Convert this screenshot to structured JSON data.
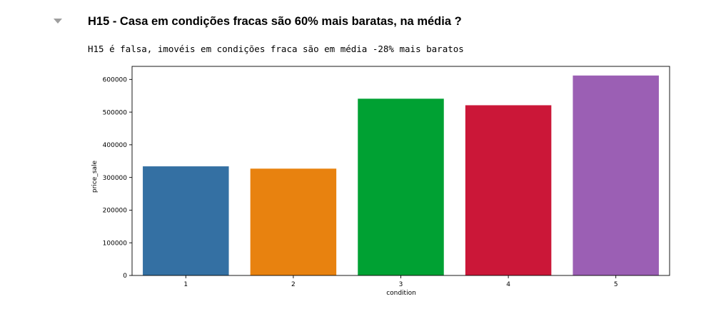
{
  "cell": {
    "heading": "H15 - Casa em condições fracas são 60% mais baratas, na média ?",
    "output_text": "H15 é falsa, imovéis em condições fraca são em média -28% mais baratos",
    "collapse_icon": "caret-down-icon"
  },
  "chart_data": {
    "type": "bar",
    "xlabel": "condition",
    "ylabel": "price_sale",
    "categories": [
      "1",
      "2",
      "3",
      "4",
      "5"
    ],
    "values": [
      334000,
      327000,
      541000,
      521000,
      612000
    ],
    "colors": [
      "#3470a3",
      "#e8820f",
      "#00a133",
      "#cb1738",
      "#9b5fb4"
    ],
    "ylim": [
      0,
      640000
    ],
    "yticks": [
      0,
      100000,
      200000,
      300000,
      400000,
      500000,
      600000
    ],
    "ytick_labels": [
      "0",
      "100000",
      "200000",
      "300000",
      "400000",
      "500000",
      "600000"
    ],
    "grid": false,
    "legend": "none"
  }
}
